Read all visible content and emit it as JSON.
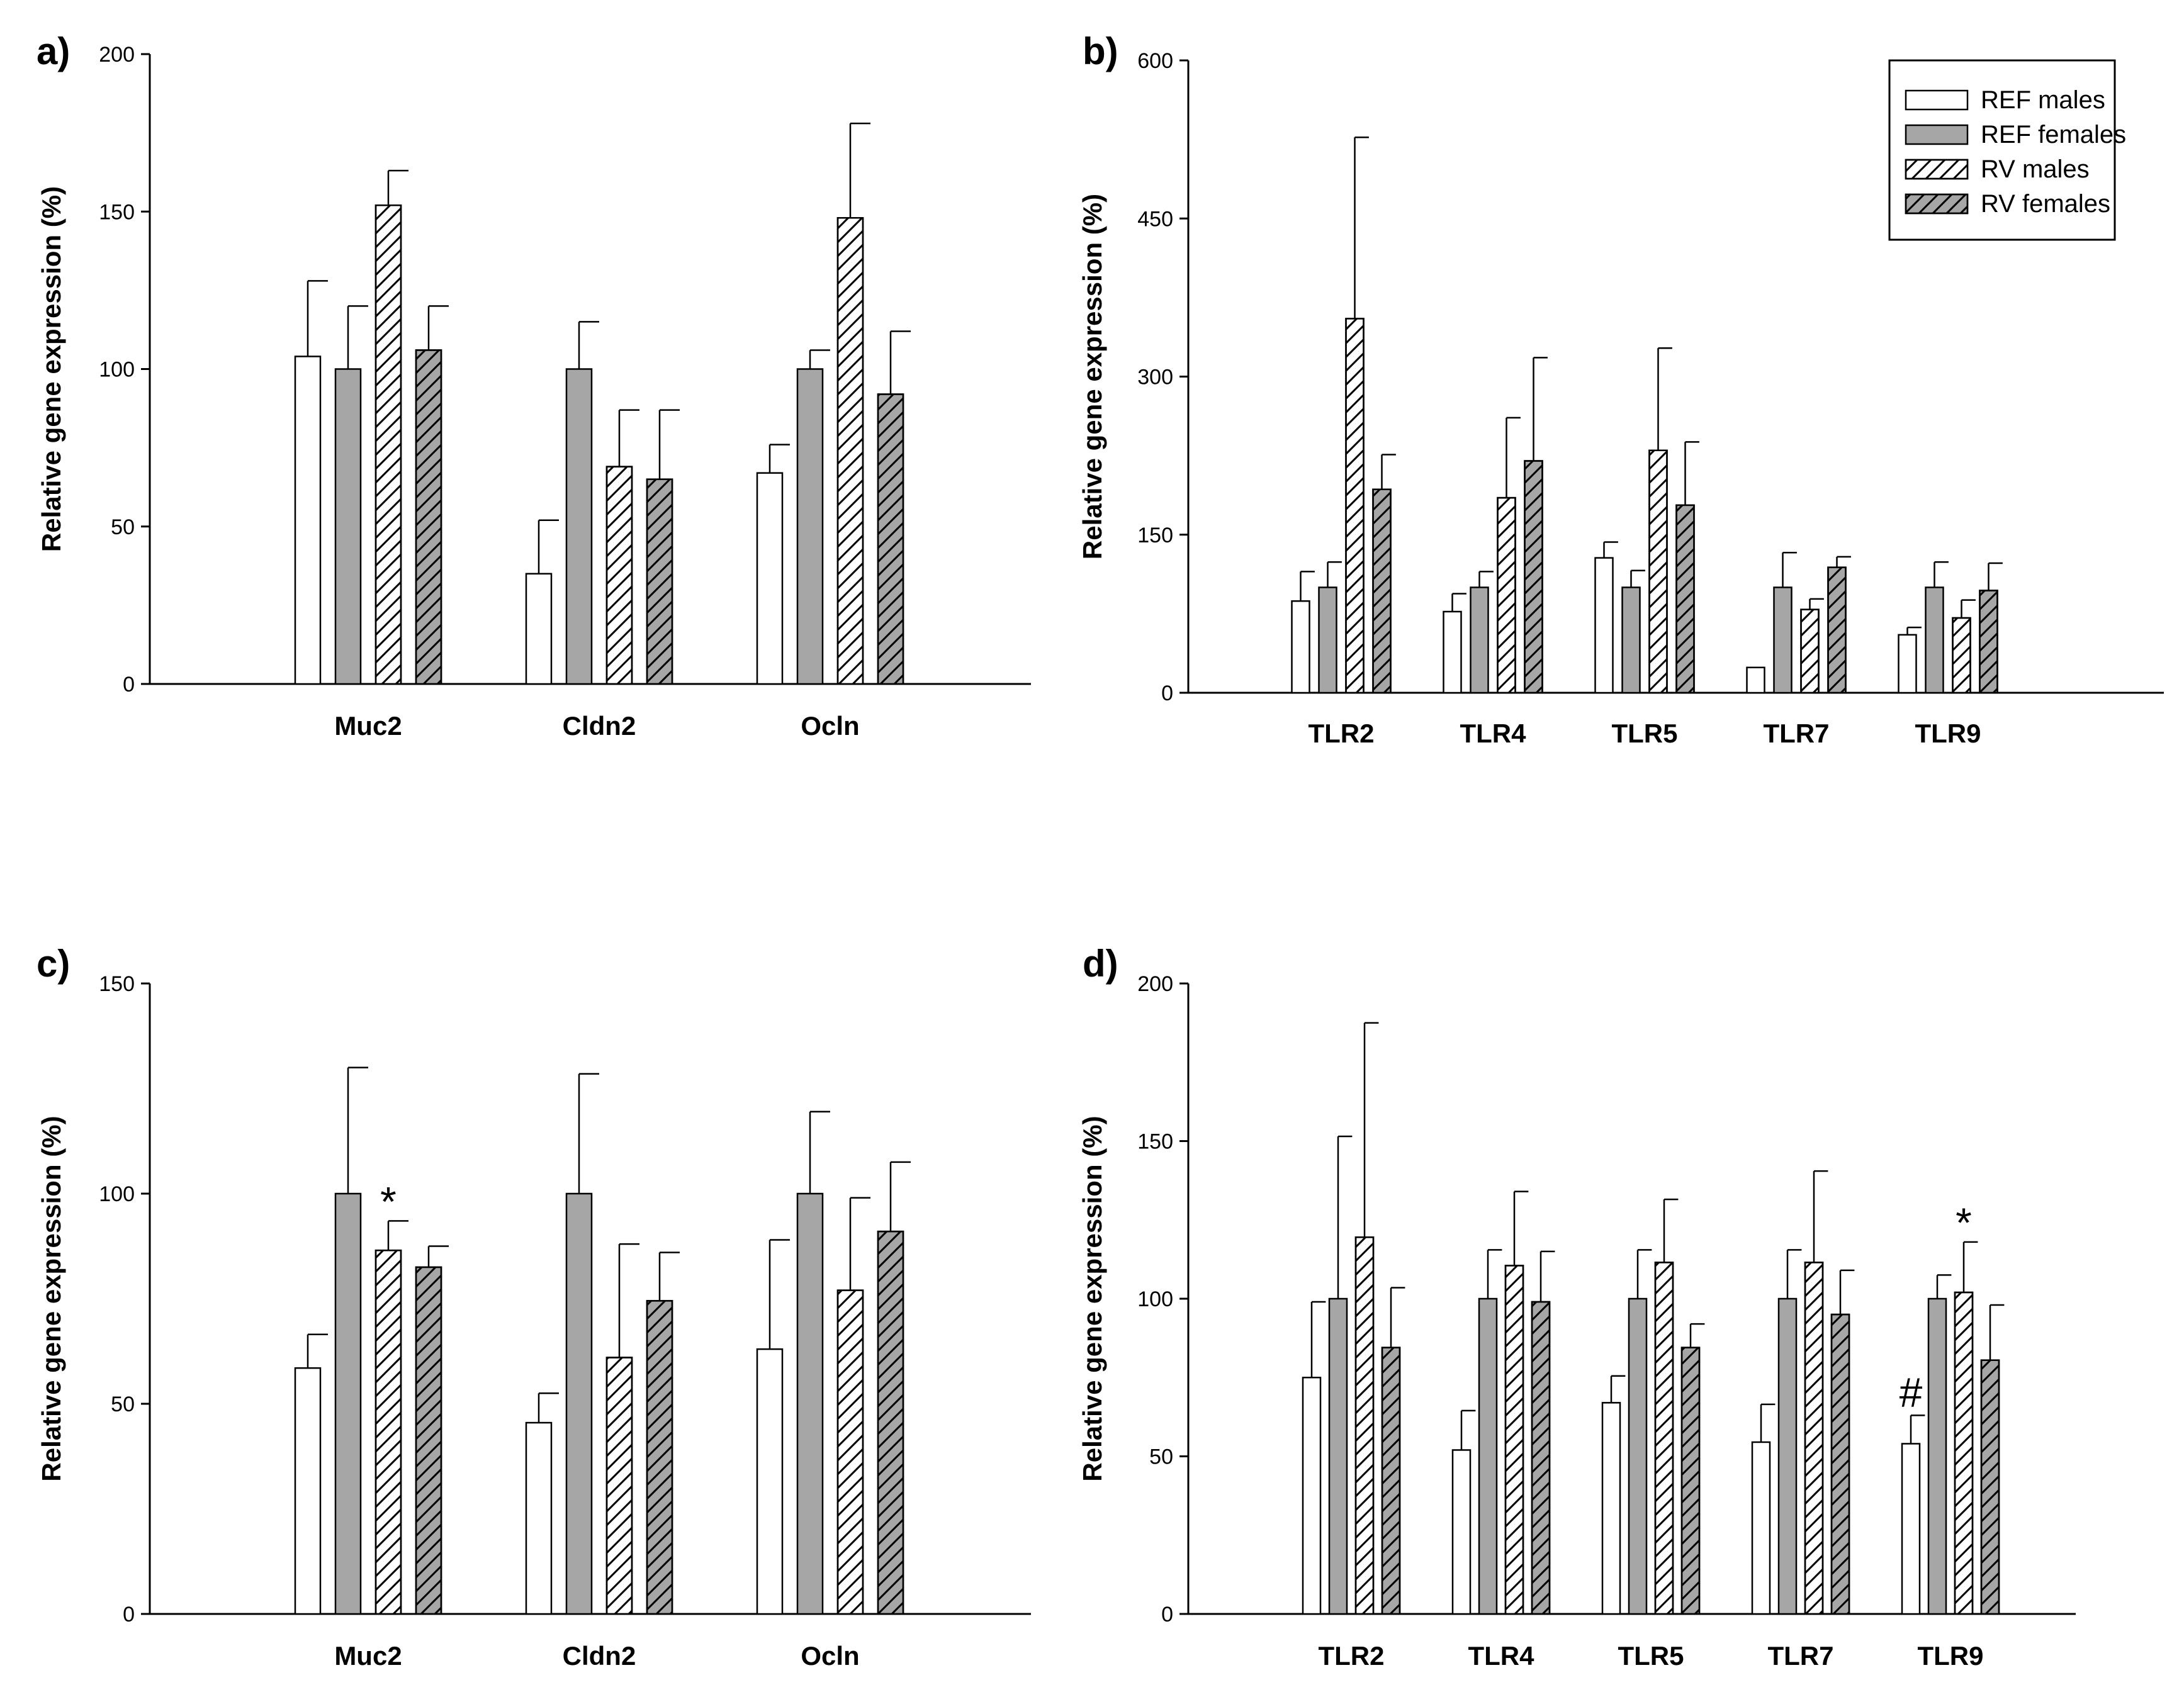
{
  "legend": {
    "entries": [
      "REF males",
      "REF females",
      "RV males",
      "RV females"
    ]
  },
  "series_style": {
    "fills": [
      "#ffffff",
      "#a6a6a6",
      "#ffffff",
      "#a6a6a6"
    ],
    "hatched": [
      false,
      false,
      true,
      true
    ],
    "stroke": "#000000"
  },
  "chart_data": [
    {
      "id": "a",
      "type": "bar",
      "panel_label": "a)",
      "ylabel": "Relative gene expression (%)",
      "ylim": [
        0,
        200
      ],
      "yticks": [
        0,
        50,
        100,
        150,
        200
      ],
      "ytick_labels": [
        "0",
        "50",
        "100",
        "150",
        "200"
      ],
      "categories": [
        "Muc2",
        "Cldn2",
        "Ocln"
      ],
      "series": [
        {
          "name": "REF males",
          "values": [
            104,
            35,
            67
          ],
          "errors": [
            24,
            17,
            9
          ]
        },
        {
          "name": "REF females",
          "values": [
            100,
            100,
            100
          ],
          "errors": [
            20,
            15,
            6
          ]
        },
        {
          "name": "RV males",
          "values": [
            152,
            69,
            148
          ],
          "errors": [
            11,
            18,
            30
          ]
        },
        {
          "name": "RV females",
          "values": [
            106,
            65,
            92
          ],
          "errors": [
            14,
            22,
            20
          ]
        }
      ],
      "annotations": []
    },
    {
      "id": "b",
      "type": "bar",
      "panel_label": "b)",
      "ylabel": "Relative gene expression (%)",
      "ylim": [
        0,
        600
      ],
      "yticks": [
        0,
        150,
        300,
        450,
        600
      ],
      "ytick_labels": [
        "0",
        "150",
        "300",
        "450",
        "600"
      ],
      "categories": [
        "TLR2",
        "TLR4",
        "TLR5",
        "TLR7",
        "TLR9"
      ],
      "series": [
        {
          "name": "REF males",
          "values": [
            87,
            77,
            128,
            24,
            55
          ],
          "errors": [
            28,
            17,
            15,
            0,
            7
          ]
        },
        {
          "name": "REF females",
          "values": [
            100,
            100,
            100,
            100,
            100
          ],
          "errors": [
            24,
            15,
            16,
            33,
            24
          ]
        },
        {
          "name": "RV males",
          "values": [
            355,
            185,
            230,
            79,
            71
          ],
          "errors": [
            172,
            76,
            97,
            10,
            17
          ]
        },
        {
          "name": "RV females",
          "values": [
            193,
            220,
            178,
            119,
            97
          ],
          "errors": [
            33,
            98,
            60,
            10,
            26
          ]
        }
      ],
      "annotations": []
    },
    {
      "id": "c",
      "type": "bar",
      "panel_label": "c)",
      "ylabel": "Relative gene expression (%)",
      "ylim": [
        0,
        150
      ],
      "yticks": [
        0,
        50,
        100,
        150
      ],
      "ytick_labels": [
        "0",
        "50",
        "100",
        "150"
      ],
      "categories": [
        "Muc2",
        "Cldn2",
        "Ocln"
      ],
      "series": [
        {
          "name": "REF males",
          "values": [
            58.5,
            45.5,
            63
          ],
          "errors": [
            8,
            7,
            26
          ]
        },
        {
          "name": "REF females",
          "values": [
            100,
            100,
            100
          ],
          "errors": [
            30,
            28.5,
            19.5
          ]
        },
        {
          "name": "RV males",
          "values": [
            86.5,
            61,
            77
          ],
          "errors": [
            7,
            27,
            22
          ]
        },
        {
          "name": "RV females",
          "values": [
            82.5,
            74.5,
            91
          ],
          "errors": [
            5,
            11.5,
            16.5
          ]
        }
      ],
      "annotations": [
        {
          "symbol": "*",
          "category": "Muc2",
          "series": "RV males"
        }
      ]
    },
    {
      "id": "d",
      "type": "bar",
      "panel_label": "d)",
      "ylabel": "Relative gene expression (%)",
      "ylim": [
        0,
        200
      ],
      "yticks": [
        0,
        50,
        100,
        150,
        200
      ],
      "ytick_labels": [
        "0",
        "50",
        "100",
        "150",
        "200"
      ],
      "categories": [
        "TLR2",
        "TLR4",
        "TLR5",
        "TLR7",
        "TLR9"
      ],
      "series": [
        {
          "name": "REF males",
          "values": [
            75,
            52,
            67,
            54.5,
            54
          ],
          "errors": [
            24,
            12.5,
            8.5,
            12,
            9
          ]
        },
        {
          "name": "REF females",
          "values": [
            100,
            100,
            100,
            100,
            100
          ],
          "errors": [
            51.5,
            15.5,
            15.5,
            15.5,
            7.5
          ]
        },
        {
          "name": "RV males",
          "values": [
            119.5,
            110.5,
            111.5,
            111.5,
            102
          ],
          "errors": [
            68,
            23.5,
            20,
            29,
            16
          ]
        },
        {
          "name": "RV females",
          "values": [
            84.5,
            99,
            84.5,
            95,
            80.5
          ],
          "errors": [
            19,
            16,
            7.5,
            14,
            17.5
          ]
        }
      ],
      "annotations": [
        {
          "symbol": "#",
          "category": "TLR9",
          "series": "REF males"
        },
        {
          "symbol": "*",
          "category": "TLR9",
          "series": "RV males"
        }
      ]
    }
  ]
}
